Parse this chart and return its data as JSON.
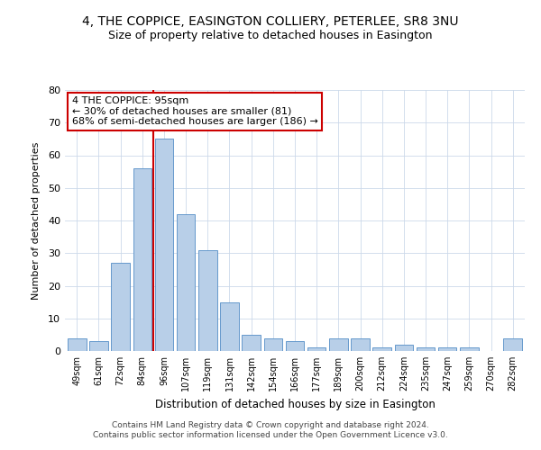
{
  "title": "4, THE COPPICE, EASINGTON COLLIERY, PETERLEE, SR8 3NU",
  "subtitle": "Size of property relative to detached houses in Easington",
  "xlabel": "Distribution of detached houses by size in Easington",
  "ylabel": "Number of detached properties",
  "categories": [
    "49sqm",
    "61sqm",
    "72sqm",
    "84sqm",
    "96sqm",
    "107sqm",
    "119sqm",
    "131sqm",
    "142sqm",
    "154sqm",
    "166sqm",
    "177sqm",
    "189sqm",
    "200sqm",
    "212sqm",
    "224sqm",
    "235sqm",
    "247sqm",
    "259sqm",
    "270sqm",
    "282sqm"
  ],
  "values": [
    4,
    3,
    27,
    56,
    65,
    42,
    31,
    15,
    5,
    4,
    3,
    1,
    4,
    4,
    1,
    2,
    1,
    1,
    1,
    0,
    4
  ],
  "bar_color": "#b8cfe8",
  "bar_edge_color": "#6699cc",
  "red_line_x": 3.5,
  "highlight_color": "#cc0000",
  "ylim": [
    0,
    80
  ],
  "yticks": [
    0,
    10,
    20,
    30,
    40,
    50,
    60,
    70,
    80
  ],
  "annotation_text": "4 THE COPPICE: 95sqm\n← 30% of detached houses are smaller (81)\n68% of semi-detached houses are larger (186) →",
  "annotation_box_color": "#ffffff",
  "annotation_border_color": "#cc0000",
  "footer_line1": "Contains HM Land Registry data © Crown copyright and database right 2024.",
  "footer_line2": "Contains public sector information licensed under the Open Government Licence v3.0.",
  "bg_color": "#ffffff",
  "grid_color": "#ccd9ea"
}
